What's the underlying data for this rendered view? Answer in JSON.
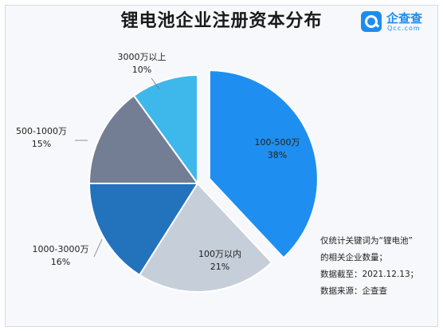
{
  "header": {
    "title": "锂电池企业注册资本分布",
    "brand_name": "企查查",
    "brand_domain": "Qcc.com"
  },
  "chart_data": {
    "type": "pie",
    "title": "锂电池企业注册资本分布",
    "slices": [
      {
        "label": "100-500万",
        "value": 38,
        "pct_label": "38%",
        "color": "#1e8ff0",
        "exploded": true
      },
      {
        "label": "100万以内",
        "value": 21,
        "pct_label": "21%",
        "color": "#c5ced9",
        "exploded": false
      },
      {
        "label": "1000-3000万",
        "value": 16,
        "pct_label": "16%",
        "color": "#2273bb",
        "exploded": false
      },
      {
        "label": "500-1000万",
        "value": 15,
        "pct_label": "15%",
        "color": "#737d93",
        "exploded": false
      },
      {
        "label": "3000万以上",
        "value": 10,
        "pct_label": "10%",
        "color": "#3eb8ea",
        "exploded": false
      }
    ]
  },
  "notes": [
    "仅统计关键词为“锂电池”",
    "的相关企业数量；",
    "数据截至：2021.12.13；",
    "数据来源：企查查"
  ]
}
